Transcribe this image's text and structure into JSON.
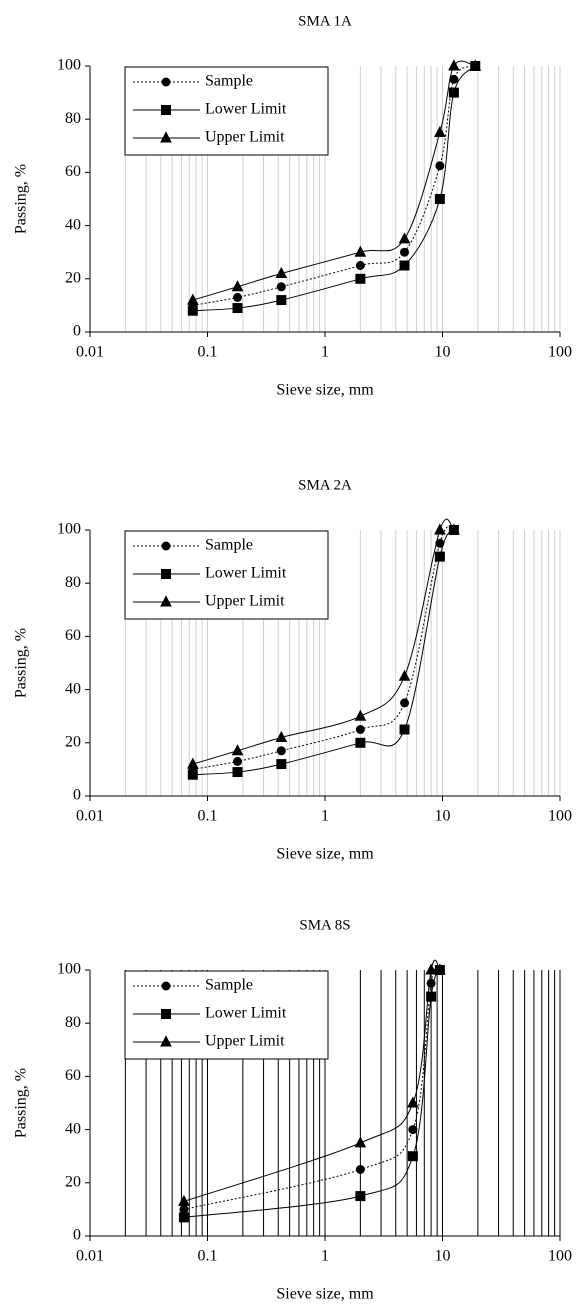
{
  "chart_data": [
    {
      "type": "line",
      "title": "SMA 1A",
      "xlabel": "Sieve size, mm",
      "ylabel": "Passing, %",
      "log_x": true,
      "grid": true,
      "grid_color": "#d0d0d0",
      "xlim": [
        0.01,
        100
      ],
      "xticks": [
        0.01,
        0.1,
        1,
        10,
        100
      ],
      "ylim": [
        0,
        100
      ],
      "yticks": [
        0,
        20,
        40,
        60,
        80,
        100
      ],
      "x": [
        0.075,
        0.18,
        0.425,
        2,
        4.75,
        9.5,
        12.5,
        19
      ],
      "series": [
        {
          "name": "Sample",
          "color": "#000000",
          "marker": "circle",
          "dashed": true,
          "values": [
            10,
            13,
            17,
            25,
            30,
            62.5,
            95,
            100
          ]
        },
        {
          "name": "Lower Limit",
          "color": "#000000",
          "marker": "square",
          "dashed": false,
          "values": [
            8,
            9,
            12,
            20,
            25,
            50,
            90,
            100
          ]
        },
        {
          "name": "Upper Limit",
          "color": "#000000",
          "marker": "triangle",
          "dashed": false,
          "values": [
            12,
            17,
            22,
            30,
            35,
            75,
            100,
            100
          ]
        }
      ]
    },
    {
      "type": "line",
      "title": "SMA 2A",
      "xlabel": "Sieve size, mm",
      "ylabel": "Passing, %",
      "log_x": true,
      "grid": true,
      "grid_color": "#d0d0d0",
      "xlim": [
        0.01,
        100
      ],
      "xticks": [
        0.01,
        0.1,
        1,
        10,
        100
      ],
      "ylim": [
        0,
        100
      ],
      "yticks": [
        0,
        20,
        40,
        60,
        80,
        100
      ],
      "x": [
        0.075,
        0.18,
        0.425,
        2,
        4.75,
        9.5,
        12.5
      ],
      "series": [
        {
          "name": "Sample",
          "color": "#000000",
          "marker": "circle",
          "dashed": true,
          "values": [
            10,
            13,
            17,
            25,
            35,
            95,
            100
          ]
        },
        {
          "name": "Lower Limit",
          "color": "#000000",
          "marker": "square",
          "dashed": false,
          "values": [
            8,
            9,
            12,
            20,
            25,
            90,
            100
          ]
        },
        {
          "name": "Upper Limit",
          "color": "#000000",
          "marker": "triangle",
          "dashed": false,
          "values": [
            12,
            17,
            22,
            30,
            45,
            100,
            100
          ]
        }
      ]
    },
    {
      "type": "line",
      "title": "SMA 8S",
      "xlabel": "Sieve size, mm",
      "ylabel": "Passing, %",
      "log_x": true,
      "grid": true,
      "grid_color": "#000000",
      "xlim": [
        0.01,
        100
      ],
      "xticks": [
        0.01,
        0.1,
        1,
        10,
        100
      ],
      "ylim": [
        0,
        100
      ],
      "yticks": [
        0,
        20,
        40,
        60,
        80,
        100
      ],
      "x": [
        0.063,
        2,
        5.6,
        8,
        9.5
      ],
      "series": [
        {
          "name": "Sample",
          "color": "#000000",
          "marker": "circle",
          "dashed": true,
          "values": [
            10,
            25,
            40,
            95,
            100
          ]
        },
        {
          "name": "Lower Limit",
          "color": "#000000",
          "marker": "square",
          "dashed": false,
          "values": [
            7,
            15,
            30,
            90,
            100
          ]
        },
        {
          "name": "Upper Limit",
          "color": "#000000",
          "marker": "triangle",
          "dashed": false,
          "values": [
            13,
            35,
            50,
            100,
            100
          ]
        }
      ]
    }
  ]
}
